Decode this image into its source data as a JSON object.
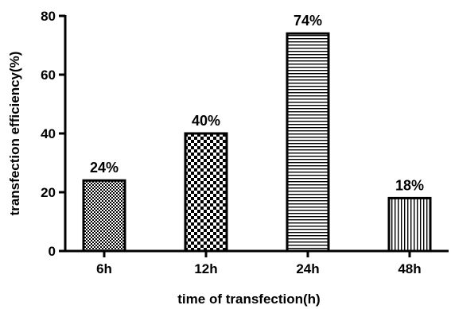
{
  "chart_data": {
    "type": "bar",
    "title": "",
    "xlabel": "time of transfection(h)",
    "ylabel": "transfection efficiency(%)",
    "categories": [
      "6h",
      "12h",
      "24h",
      "48h"
    ],
    "values": [
      24,
      40,
      74,
      18
    ],
    "data_labels": [
      "24%",
      "40%",
      "74%",
      "18%"
    ],
    "patterns": [
      "fine-checker",
      "checker",
      "horizontal-lines",
      "vertical-lines"
    ],
    "ylim": [
      0,
      80
    ],
    "yticks": [
      0,
      20,
      40,
      60,
      80
    ],
    "grid": false,
    "legend": "none",
    "colors": {
      "axis": "#000000",
      "bar_stroke": "#000000",
      "background": "#ffffff"
    }
  }
}
